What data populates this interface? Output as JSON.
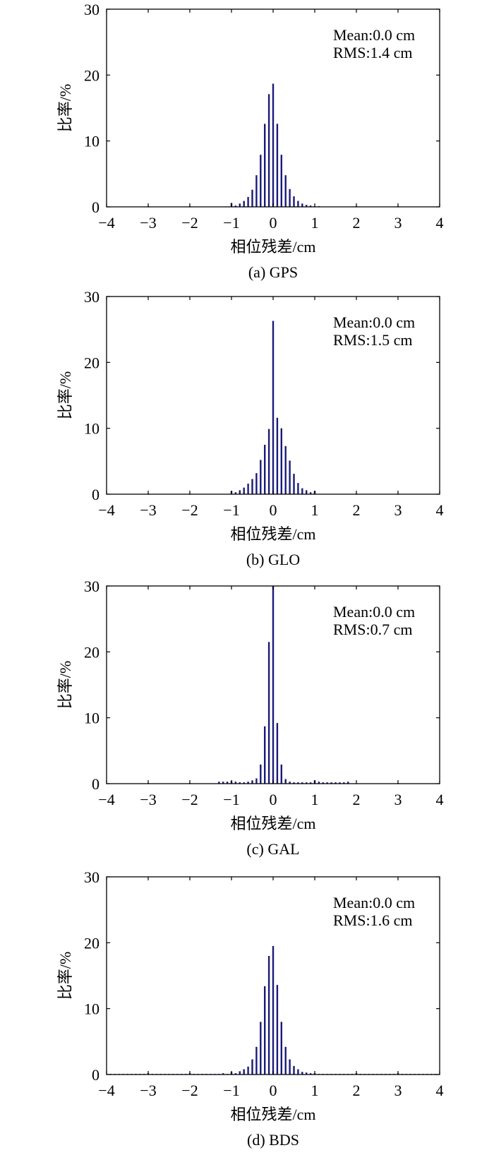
{
  "bar_color": "#1a1a7a",
  "chart_data": [
    {
      "type": "bar",
      "caption": "(a) GPS",
      "xlabel": "相位残差/cm",
      "ylabel": "比率/%",
      "xlim": [
        -4,
        4
      ],
      "ylim": [
        0,
        30
      ],
      "xticks": [
        "−4",
        "−3",
        "−2",
        "−1",
        "0",
        "1",
        "2",
        "3",
        "4"
      ],
      "yticks": [
        "0",
        "10",
        "20",
        "30"
      ],
      "annotation": [
        "Mean:0.0 cm",
        "RMS:1.4 cm"
      ],
      "x": [
        -3.0,
        -2.6,
        -2.5,
        -2.4,
        -2.3,
        -2.2,
        -2.1,
        -2.0,
        -1.9,
        -1.8,
        -1.7,
        -1.6,
        -1.5,
        -1.4,
        -1.3,
        -1.2,
        -1.1,
        -1.0,
        -0.9,
        -0.8,
        -0.7,
        -0.6,
        -0.5,
        -0.4,
        -0.3,
        -0.2,
        -0.1,
        0.0,
        0.1,
        0.2,
        0.3,
        0.4,
        0.5,
        0.6,
        0.7,
        0.8,
        0.9,
        1.0,
        1.1,
        1.2,
        1.3,
        1.4,
        1.5,
        1.6,
        1.7,
        1.8,
        1.9,
        2.0,
        2.1,
        2.2,
        2.3,
        2.5,
        3.0
      ],
      "values": [
        0.1,
        0.05,
        0.05,
        0.05,
        0.05,
        0.05,
        0.05,
        0.1,
        0.05,
        0.05,
        0.05,
        0.05,
        0.05,
        0.05,
        0.05,
        0.05,
        0.05,
        0.6,
        0.2,
        0.5,
        0.9,
        1.5,
        2.6,
        4.8,
        7.9,
        12.6,
        17.1,
        18.7,
        12.6,
        7.9,
        4.8,
        2.7,
        1.6,
        0.9,
        0.5,
        0.3,
        0.2,
        0.1,
        0.1,
        0.05,
        0.05,
        0.05,
        0.05,
        0.05,
        0.05,
        0.05,
        0.05,
        0.1,
        0.05,
        0.05,
        0.05,
        0.05,
        0.1
      ]
    },
    {
      "type": "bar",
      "caption": "(b) GLO",
      "xlabel": "相位残差/cm",
      "ylabel": "比率/%",
      "xlim": [
        -4,
        4
      ],
      "ylim": [
        0,
        30
      ],
      "xticks": [
        "−4",
        "−3",
        "−2",
        "−1",
        "0",
        "1",
        "2",
        "3",
        "4"
      ],
      "yticks": [
        "0",
        "10",
        "20",
        "30"
      ],
      "annotation": [
        "Mean:0.0 cm",
        "RMS:1.5 cm"
      ],
      "x": [
        -3.0,
        -2.0,
        -1.0,
        -0.9,
        -0.8,
        -0.7,
        -0.6,
        -0.5,
        -0.4,
        -0.3,
        -0.2,
        -0.1,
        0.0,
        0.1,
        0.2,
        0.3,
        0.4,
        0.5,
        0.6,
        0.7,
        0.8,
        0.9,
        1.0,
        2.0,
        3.0
      ],
      "values": [
        0.1,
        0.1,
        0.5,
        0.3,
        0.6,
        1.0,
        1.6,
        2.3,
        3.2,
        5.2,
        7.5,
        9.9,
        26.3,
        11.6,
        10.0,
        7.3,
        5.1,
        3.1,
        1.7,
        0.9,
        0.6,
        0.3,
        0.5,
        0.1,
        0.1
      ]
    },
    {
      "type": "bar",
      "caption": "(c) GAL",
      "xlabel": "相位残差/cm",
      "ylabel": "比率/%",
      "xlim": [
        -4,
        4
      ],
      "ylim": [
        0,
        30
      ],
      "xticks": [
        "−4",
        "−3",
        "−2",
        "−1",
        "0",
        "1",
        "2",
        "3",
        "4"
      ],
      "yticks": [
        "0",
        "10",
        "20",
        "30"
      ],
      "annotation": [
        "Mean:0.0 cm",
        "RMS:0.7 cm"
      ],
      "x": [
        -3.0,
        -2.0,
        -1.3,
        -1.2,
        -1.1,
        -1.0,
        -0.9,
        -0.8,
        -0.7,
        -0.6,
        -0.5,
        -0.4,
        -0.3,
        -0.2,
        -0.1,
        0.0,
        0.1,
        0.2,
        0.3,
        0.4,
        0.5,
        0.6,
        0.7,
        0.8,
        0.9,
        1.0,
        1.1,
        1.2,
        1.3,
        1.4,
        1.5,
        1.6,
        1.7,
        1.8,
        3.0
      ],
      "values": [
        0.1,
        0.1,
        0.3,
        0.3,
        0.3,
        0.4,
        0.3,
        0.2,
        0.2,
        0.3,
        0.5,
        0.8,
        2.9,
        8.7,
        21.5,
        30.0,
        9.2,
        2.9,
        0.7,
        0.3,
        0.2,
        0.2,
        0.2,
        0.2,
        0.2,
        0.5,
        0.3,
        0.2,
        0.2,
        0.2,
        0.2,
        0.2,
        0.2,
        0.3,
        0.1
      ]
    },
    {
      "type": "bar",
      "caption": "(d) BDS",
      "xlabel": "相位残差/cm",
      "ylabel": "比率/%",
      "xlim": [
        -4,
        4
      ],
      "ylim": [
        0,
        30
      ],
      "xticks": [
        "−4",
        "−3",
        "−2",
        "−1",
        "0",
        "1",
        "2",
        "3",
        "4"
      ],
      "yticks": [
        "0",
        "10",
        "20",
        "30"
      ],
      "annotation": [
        "Mean:0.0 cm",
        "RMS:1.6 cm"
      ],
      "x": [
        -3.9,
        -3.8,
        -3.7,
        -3.6,
        -3.5,
        -3.4,
        -3.3,
        -3.2,
        -3.1,
        -3.0,
        -2.9,
        -2.8,
        -2.7,
        -2.6,
        -2.5,
        -2.4,
        -2.3,
        -2.2,
        -2.1,
        -2.0,
        -1.9,
        -1.8,
        -1.7,
        -1.6,
        -1.5,
        -1.4,
        -1.3,
        -1.2,
        -1.1,
        -1.0,
        -0.9,
        -0.8,
        -0.7,
        -0.6,
        -0.5,
        -0.4,
        -0.3,
        -0.2,
        -0.1,
        0.0,
        0.1,
        0.2,
        0.3,
        0.4,
        0.5,
        0.6,
        0.7,
        0.8,
        0.9,
        1.0,
        1.1,
        1.2,
        1.3,
        1.4,
        1.5,
        1.6,
        1.7,
        1.8,
        1.9,
        2.0,
        2.1,
        2.2,
        2.3,
        2.4,
        2.5,
        2.6,
        2.7,
        2.8,
        2.9,
        3.0,
        3.1,
        3.2,
        3.3,
        3.4,
        3.5,
        3.6,
        3.7,
        3.8,
        3.9
      ],
      "values": [
        0.1,
        0.1,
        0.1,
        0.1,
        0.1,
        0.1,
        0.1,
        0.1,
        0.1,
        0.2,
        0.1,
        0.1,
        0.1,
        0.1,
        0.1,
        0.1,
        0.1,
        0.1,
        0.1,
        0.2,
        0.1,
        0.1,
        0.1,
        0.1,
        0.1,
        0.1,
        0.1,
        0.2,
        0.1,
        0.4,
        0.2,
        0.5,
        0.8,
        1.2,
        2.3,
        4.2,
        8.0,
        13.4,
        18.0,
        19.5,
        13.6,
        8.0,
        4.2,
        2.3,
        1.3,
        0.8,
        0.4,
        0.3,
        0.2,
        0.2,
        0.1,
        0.1,
        0.1,
        0.1,
        0.1,
        0.1,
        0.1,
        0.1,
        0.1,
        0.2,
        0.1,
        0.1,
        0.1,
        0.1,
        0.1,
        0.1,
        0.1,
        0.1,
        0.1,
        0.2,
        0.1,
        0.1,
        0.1,
        0.1,
        0.1,
        0.1,
        0.1,
        0.1,
        0.1
      ]
    }
  ]
}
